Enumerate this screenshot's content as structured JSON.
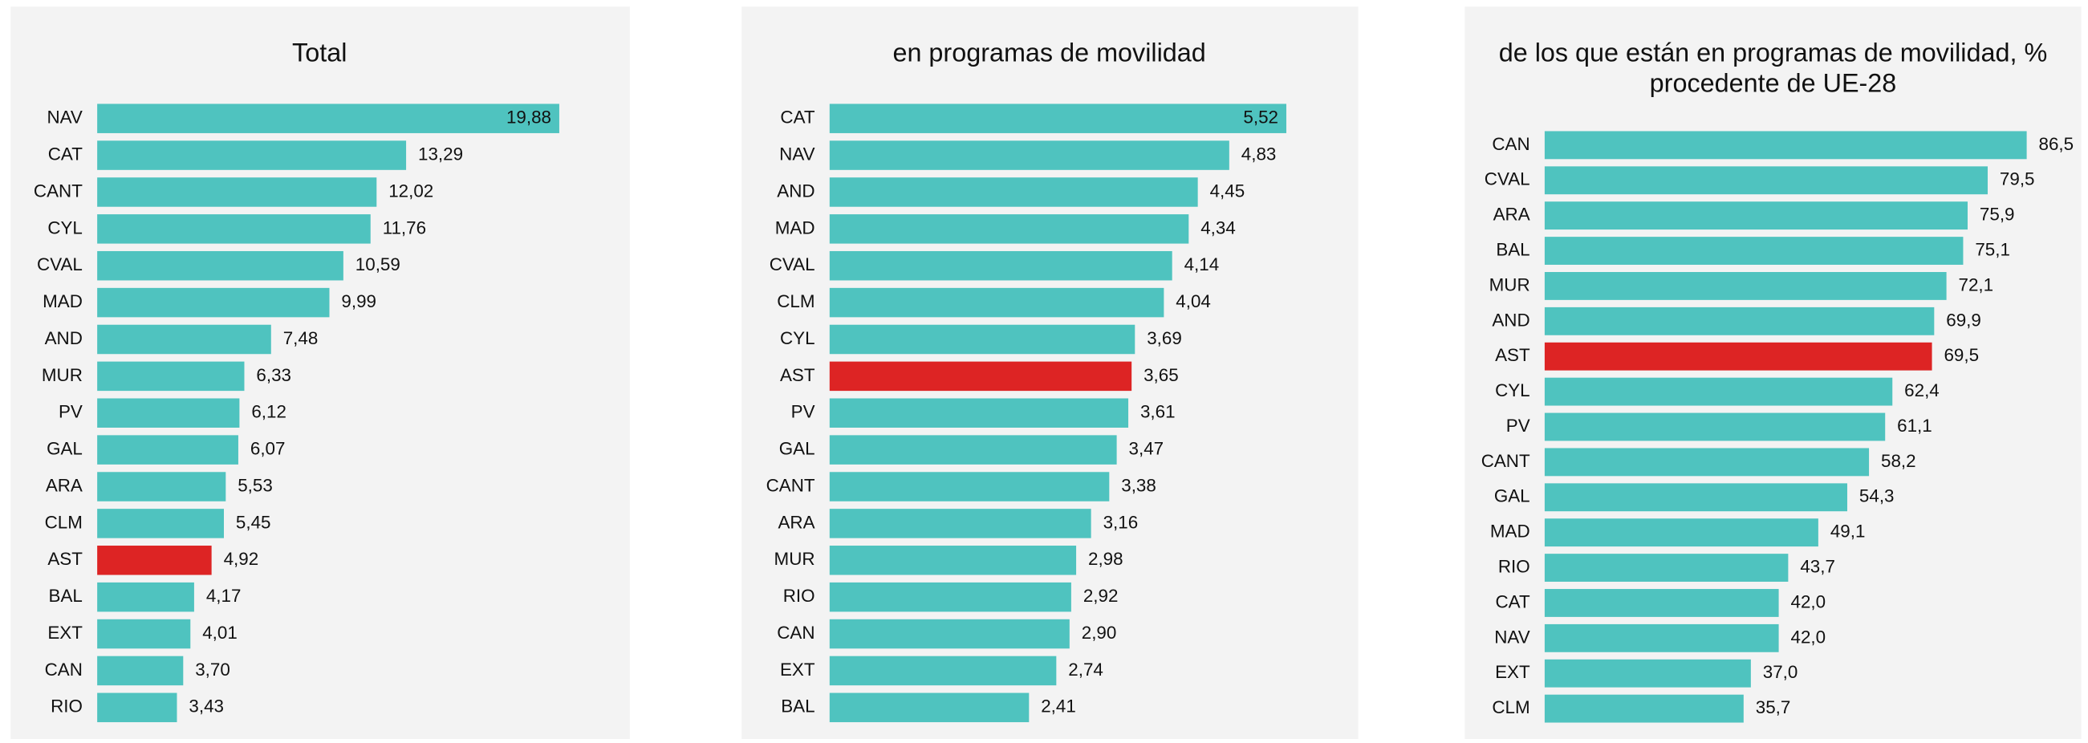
{
  "chart_data": [
    {
      "type": "bar",
      "orientation": "horizontal",
      "title": "Total",
      "categories": [
        "NAV",
        "CAT",
        "CANT",
        "CYL",
        "CVAL",
        "MAD",
        "AND",
        "MUR",
        "PV",
        "GAL",
        "ARA",
        "CLM",
        "AST",
        "BAL",
        "EXT",
        "CAN",
        "RIO"
      ],
      "values": [
        19.88,
        13.29,
        12.02,
        11.76,
        10.59,
        9.99,
        7.48,
        6.33,
        6.12,
        6.07,
        5.53,
        5.45,
        4.92,
        4.17,
        4.01,
        3.7,
        3.43
      ],
      "value_labels": [
        "19,88",
        "13,29",
        "12,02",
        "11,76",
        "10,59",
        "9,99",
        "7,48",
        "6,33",
        "6,12",
        "6,07",
        "5,53",
        "5,45",
        "4,92",
        "4,17",
        "4,01",
        "3,70",
        "3,43"
      ],
      "colors": [
        "#4fc3bf",
        "#4fc3bf",
        "#4fc3bf",
        "#4fc3bf",
        "#4fc3bf",
        "#4fc3bf",
        "#4fc3bf",
        "#4fc3bf",
        "#4fc3bf",
        "#4fc3bf",
        "#4fc3bf",
        "#4fc3bf",
        "#dd2424",
        "#4fc3bf",
        "#4fc3bf",
        "#4fc3bf",
        "#4fc3bf"
      ]
    },
    {
      "type": "bar",
      "orientation": "horizontal",
      "title": "en programas de movilidad",
      "categories": [
        "CAT",
        "NAV",
        "AND",
        "MAD",
        "CVAL",
        "CLM",
        "CYL",
        "AST",
        "PV",
        "GAL",
        "CANT",
        "ARA",
        "MUR",
        "RIO",
        "CAN",
        "EXT",
        "BAL"
      ],
      "values": [
        5.52,
        4.83,
        4.45,
        4.34,
        4.14,
        4.04,
        3.69,
        3.65,
        3.61,
        3.47,
        3.38,
        3.16,
        2.98,
        2.92,
        2.9,
        2.74,
        2.41
      ],
      "value_labels": [
        "5,52",
        "4,83",
        "4,45",
        "4,34",
        "4,14",
        "4,04",
        "3,69",
        "3,65",
        "3,61",
        "3,47",
        "3,38",
        "3,16",
        "2,98",
        "2,92",
        "2,90",
        "2,74",
        "2,41"
      ],
      "colors": [
        "#4fc3bf",
        "#4fc3bf",
        "#4fc3bf",
        "#4fc3bf",
        "#4fc3bf",
        "#4fc3bf",
        "#4fc3bf",
        "#dd2424",
        "#4fc3bf",
        "#4fc3bf",
        "#4fc3bf",
        "#4fc3bf",
        "#4fc3bf",
        "#4fc3bf",
        "#4fc3bf",
        "#4fc3bf",
        "#4fc3bf"
      ]
    },
    {
      "type": "bar",
      "orientation": "horizontal",
      "title": "de los que están en programas de movilidad, % procedente de UE-28",
      "categories": [
        "CAN",
        "CVAL",
        "ARA",
        "BAL",
        "MUR",
        "AND",
        "AST",
        "CYL",
        "PV",
        "CANT",
        "GAL",
        "MAD",
        "RIO",
        "CAT",
        "NAV",
        "EXT",
        "CLM"
      ],
      "values": [
        86.5,
        79.5,
        75.9,
        75.1,
        72.1,
        69.9,
        69.5,
        62.4,
        61.1,
        58.2,
        54.3,
        49.1,
        43.7,
        42.0,
        42.0,
        37.0,
        35.7
      ],
      "value_labels": [
        "86,5",
        "79,5",
        "75,9",
        "75,1",
        "72,1",
        "69,9",
        "69,5",
        "62,4",
        "61,1",
        "58,2",
        "54,3",
        "49,1",
        "43,7",
        "42,0",
        "42,0",
        "37,0",
        "35,7"
      ],
      "colors": [
        "#4fc3bf",
        "#4fc3bf",
        "#4fc3bf",
        "#4fc3bf",
        "#4fc3bf",
        "#4fc3bf",
        "#dd2424",
        "#4fc3bf",
        "#4fc3bf",
        "#4fc3bf",
        "#4fc3bf",
        "#4fc3bf",
        "#4fc3bf",
        "#4fc3bf",
        "#4fc3bf",
        "#4fc3bf",
        "#4fc3bf"
      ]
    }
  ]
}
